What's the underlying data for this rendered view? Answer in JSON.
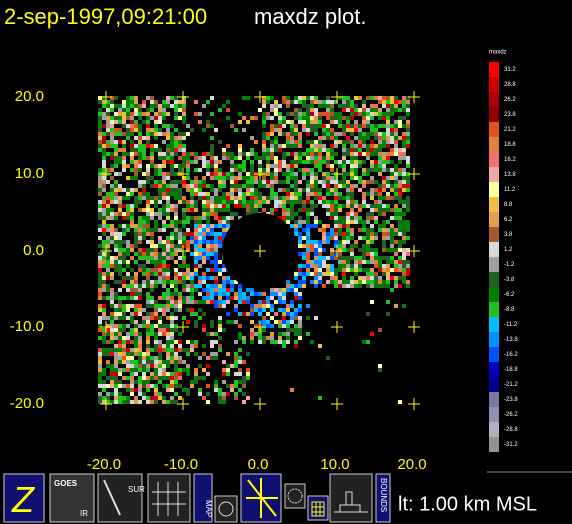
{
  "title": {
    "datetime": "2-sep-1997,09:21:00",
    "product": "maxdz plot."
  },
  "plot": {
    "y_labels": [
      "20.0",
      "10.0",
      "0.0",
      "-10.0",
      "-20.0"
    ],
    "x_labels": [
      "-20.0",
      "-10.0",
      "0.0",
      "10.0",
      "20.0"
    ]
  },
  "legend": {
    "title": "maxdz",
    "levels": [
      {
        "label": "31.2",
        "color": "#ff0000"
      },
      {
        "label": "28.8",
        "color": "#d00000"
      },
      {
        "label": "26.2",
        "color": "#b00010"
      },
      {
        "label": "23.8",
        "color": "#900000"
      },
      {
        "label": "21.2",
        "color": "#e05020"
      },
      {
        "label": "18.8",
        "color": "#e08040"
      },
      {
        "label": "16.2",
        "color": "#f07070"
      },
      {
        "label": "13.8",
        "color": "#f0a8a8"
      },
      {
        "label": "11.2",
        "color": "#ffffa0"
      },
      {
        "label": "8.8",
        "color": "#f0c040"
      },
      {
        "label": "6.2",
        "color": "#e0a050"
      },
      {
        "label": "3.8",
        "color": "#a05a30"
      },
      {
        "label": "1.2",
        "color": "#d8d8d8"
      },
      {
        "label": "-1.2",
        "color": "#a0a0a0"
      },
      {
        "label": "-3.8",
        "color": "#206020"
      },
      {
        "label": "-6.2",
        "color": "#008000"
      },
      {
        "label": "-8.8",
        "color": "#20c020"
      },
      {
        "label": "-11.2",
        "color": "#00c0ff"
      },
      {
        "label": "-13.8",
        "color": "#0090ff"
      },
      {
        "label": "-16.2",
        "color": "#0050ff"
      },
      {
        "label": "-18.8",
        "color": "#0000c0"
      },
      {
        "label": "-21.2",
        "color": "#000090"
      },
      {
        "label": "-23.8",
        "color": "#7878a0"
      },
      {
        "label": "-26.2",
        "color": "#9090b0"
      },
      {
        "label": "-28.8",
        "color": "#b0b0c0"
      },
      {
        "label": "-31.2",
        "color": "#909090"
      }
    ]
  },
  "toolbar": {
    "buttons": [
      "Z",
      "GOES",
      "IR",
      "SUR",
      "MAP",
      "BOUNDS"
    ]
  },
  "status": "lt: 1.00 km MSL"
}
